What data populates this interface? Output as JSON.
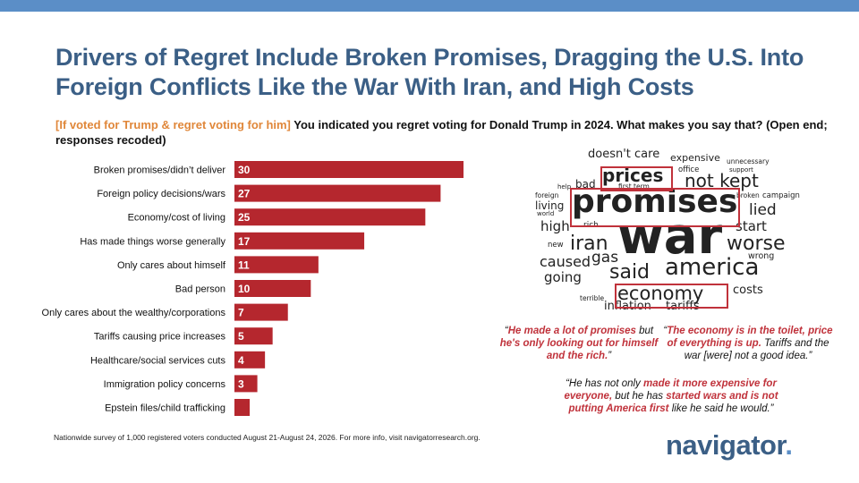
{
  "title": "Drivers of Regret Include Broken Promises, Dragging the U.S. Into Foreign Conflicts Like the War With Iran, and High Costs",
  "question": {
    "filter": "[If voted for Trump & regret voting for him]",
    "text": " You indicated you regret voting for Donald Trump in 2024. What makes you say that? (Open end; responses recoded)"
  },
  "colors": {
    "bar": "#b5272e",
    "title": "#3b5f86",
    "filter": "#e0873a",
    "accent": "#c0323b",
    "topbar": "#5b8ec7"
  },
  "chart_data": {
    "type": "bar",
    "orientation": "horizontal",
    "categories": [
      "Broken promises/didn’t deliver",
      "Foreign policy decisions/wars",
      "Economy/cost of living",
      "Has made things worse generally",
      "Only cares about himself",
      "Bad person",
      "Only cares about the wealthy/corporations",
      "Tariffs causing price increases",
      "Healthcare/social services cuts",
      "Immigration policy concerns",
      "Epstein files/child trafficking"
    ],
    "values": [
      30,
      27,
      25,
      17,
      11,
      10,
      7,
      5,
      4,
      3,
      2
    ],
    "value_labels": [
      "30",
      "27",
      "25",
      "17",
      "11",
      "10",
      "7",
      "5",
      "4",
      "3",
      ""
    ],
    "xlim": [
      0,
      30
    ],
    "grid": false,
    "title": "",
    "xlabel": "",
    "ylabel": ""
  },
  "wordcloud": {
    "words": [
      "doesn't care",
      "expensive",
      "unnecessary",
      "office",
      "support",
      "prices",
      "first term",
      "not kept",
      "bad",
      "help",
      "foreign",
      "living",
      "world",
      "promises",
      "broken",
      "campaign",
      "lied",
      "high",
      "rich",
      "war",
      "start",
      "new",
      "iran",
      "worse",
      "gas",
      "wrong",
      "caused",
      "america",
      "said",
      "going",
      "economy",
      "costs",
      "terrible",
      "inflation",
      "tariffs"
    ],
    "highlighted": [
      "prices",
      "promises",
      "economy"
    ]
  },
  "quotes": [
    {
      "parts": [
        {
          "t": "“",
          "hl": false
        },
        {
          "t": "He made a lot of promises",
          "hl": true
        },
        {
          "t": " but ",
          "hl": false
        },
        {
          "t": "he's only looking out for himself and the rich.",
          "hl": true
        },
        {
          "t": "”",
          "hl": false
        }
      ]
    },
    {
      "parts": [
        {
          "t": "“",
          "hl": false
        },
        {
          "t": "The economy is in the toilet, price of everything is up.",
          "hl": true
        },
        {
          "t": " Tariffs and the war [were] not a good idea.”",
          "hl": false
        }
      ]
    },
    {
      "parts": [
        {
          "t": "“He has not only ",
          "hl": false
        },
        {
          "t": "made it more expensive for everyone,",
          "hl": true
        },
        {
          "t": " but he has ",
          "hl": false
        },
        {
          "t": "started wars and is not putting America first",
          "hl": true
        },
        {
          "t": " like he said he would.”",
          "hl": false
        }
      ]
    }
  ],
  "footnote": "Nationwide survey of 1,000 registered voters conducted August 21-August 24, 2026. For more info, visit navigatorresearch.org.",
  "logo": {
    "text": "navigator",
    "dot": "."
  }
}
